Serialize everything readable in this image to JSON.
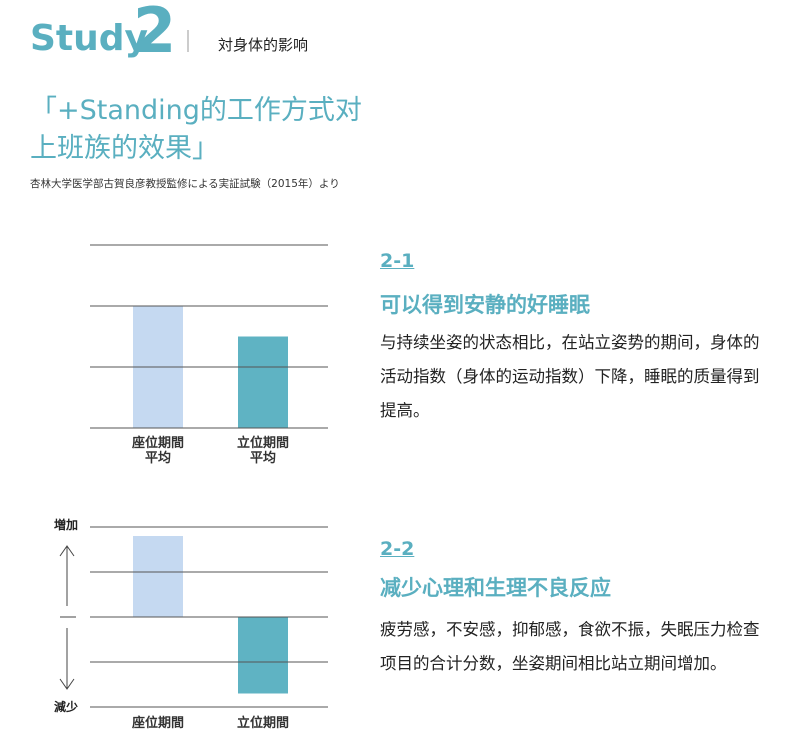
{
  "header": {
    "study_word": "Study",
    "study_number": "2",
    "topic": "対身体的影响",
    "title_lines": [
      "「+Standing的工作方式对",
      "上班族的效果」"
    ],
    "source": "杏林大学医学部古賀良彦教授監修による実証試験（2015年）より"
  },
  "sections": [
    {
      "number": "2-1",
      "heading": "可以得到安静的好睡眠",
      "body": "与持续坐姿的状态相比，在站立姿势的期间，身体的活动指数（身体的运动指数）下降，睡眠的质量得到提高。"
    },
    {
      "number": "2-2",
      "heading": "减少心理和生理不良反应",
      "body": "疲劳感，不安感，抑郁感，食欲不振，失眠压力检查项目的合计分数，坐姿期间相比站立期间增加。"
    }
  ],
  "chart_data": [
    {
      "type": "bar",
      "categories": [
        "座位期間\n平均",
        "立位期間\n平均"
      ],
      "values": [
        2,
        1.5
      ],
      "colors": [
        "#c5d9f1",
        "#5fb3c3"
      ],
      "ylim": [
        0,
        3
      ],
      "yticks": [
        0,
        1,
        2,
        3
      ],
      "grid": true
    },
    {
      "type": "bar",
      "categories": [
        "座位期間",
        "立位期間"
      ],
      "values": [
        1.8,
        -1.7
      ],
      "colors": [
        "#c5d9f1",
        "#5fb3c3"
      ],
      "ylim": [
        -2,
        2
      ],
      "yticks": [
        -2,
        -1,
        0,
        1,
        2
      ],
      "grid": true,
      "y_top_label": "増加",
      "y_bottom_label": "減少"
    }
  ]
}
